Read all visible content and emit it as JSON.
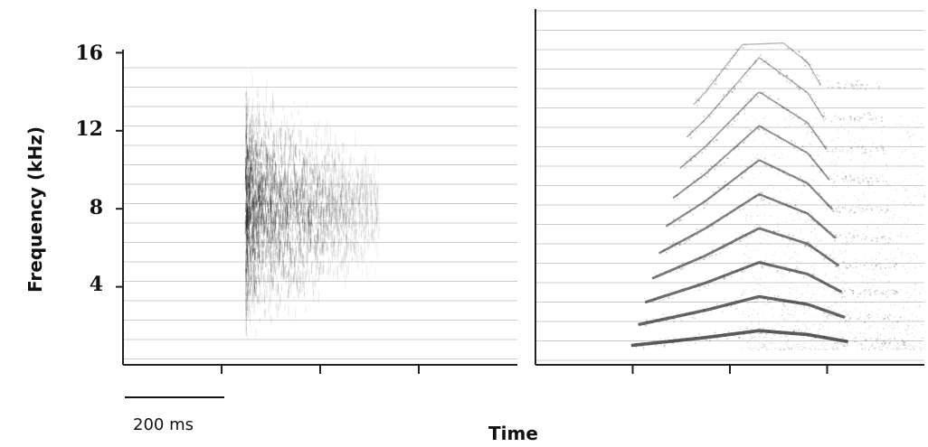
{
  "chart_data": [
    {
      "type": "heatmap",
      "title": "",
      "ylabel": "Frequency (kHz)",
      "xlabel": "Time",
      "ylim": [
        0,
        16
      ],
      "yticks": [
        4,
        8,
        12,
        16
      ],
      "xlim_ms": [
        0,
        800
      ],
      "xticks_ms": [
        200,
        400,
        600
      ],
      "grid": true,
      "colors": {
        "ink": "#1a1a1a",
        "grid": "#cccccc",
        "axis": "#222222",
        "background": "#ffffff"
      },
      "scale_bar": {
        "duration_ms": 200,
        "label": "200 ms"
      },
      "description": "broadband noise burst",
      "burst": {
        "t_start_ms": 250,
        "t_end_ms": 520,
        "freq_low_khz": 1.5,
        "freq_high_khz": 15.5,
        "peak_khz": 8
      }
    },
    {
      "type": "heatmap",
      "xlabel": "Time",
      "ylim": [
        0,
        16
      ],
      "xlim_ms": [
        0,
        800
      ],
      "xticks_ms": [
        200,
        400,
        600
      ],
      "grid": true,
      "description": "harmonic call",
      "harmonic_stack": {
        "fundamental_points": [
          {
            "t_ms": 200,
            "f_khz": 1.0
          },
          {
            "t_ms": 350,
            "f_khz": 1.4
          },
          {
            "t_ms": 460,
            "f_khz": 1.75
          },
          {
            "t_ms": 560,
            "f_khz": 1.55
          },
          {
            "t_ms": 640,
            "f_khz": 1.2
          }
        ],
        "harmonics": [
          1,
          2,
          3,
          4,
          5,
          6,
          7,
          8,
          9,
          10
        ]
      }
    }
  ],
  "labels": {
    "ylabel": "Frequency (kHz)",
    "xlabel": "Time",
    "scale_bar": "200 ms",
    "yticks": [
      "16",
      "12",
      "8",
      "4"
    ]
  }
}
